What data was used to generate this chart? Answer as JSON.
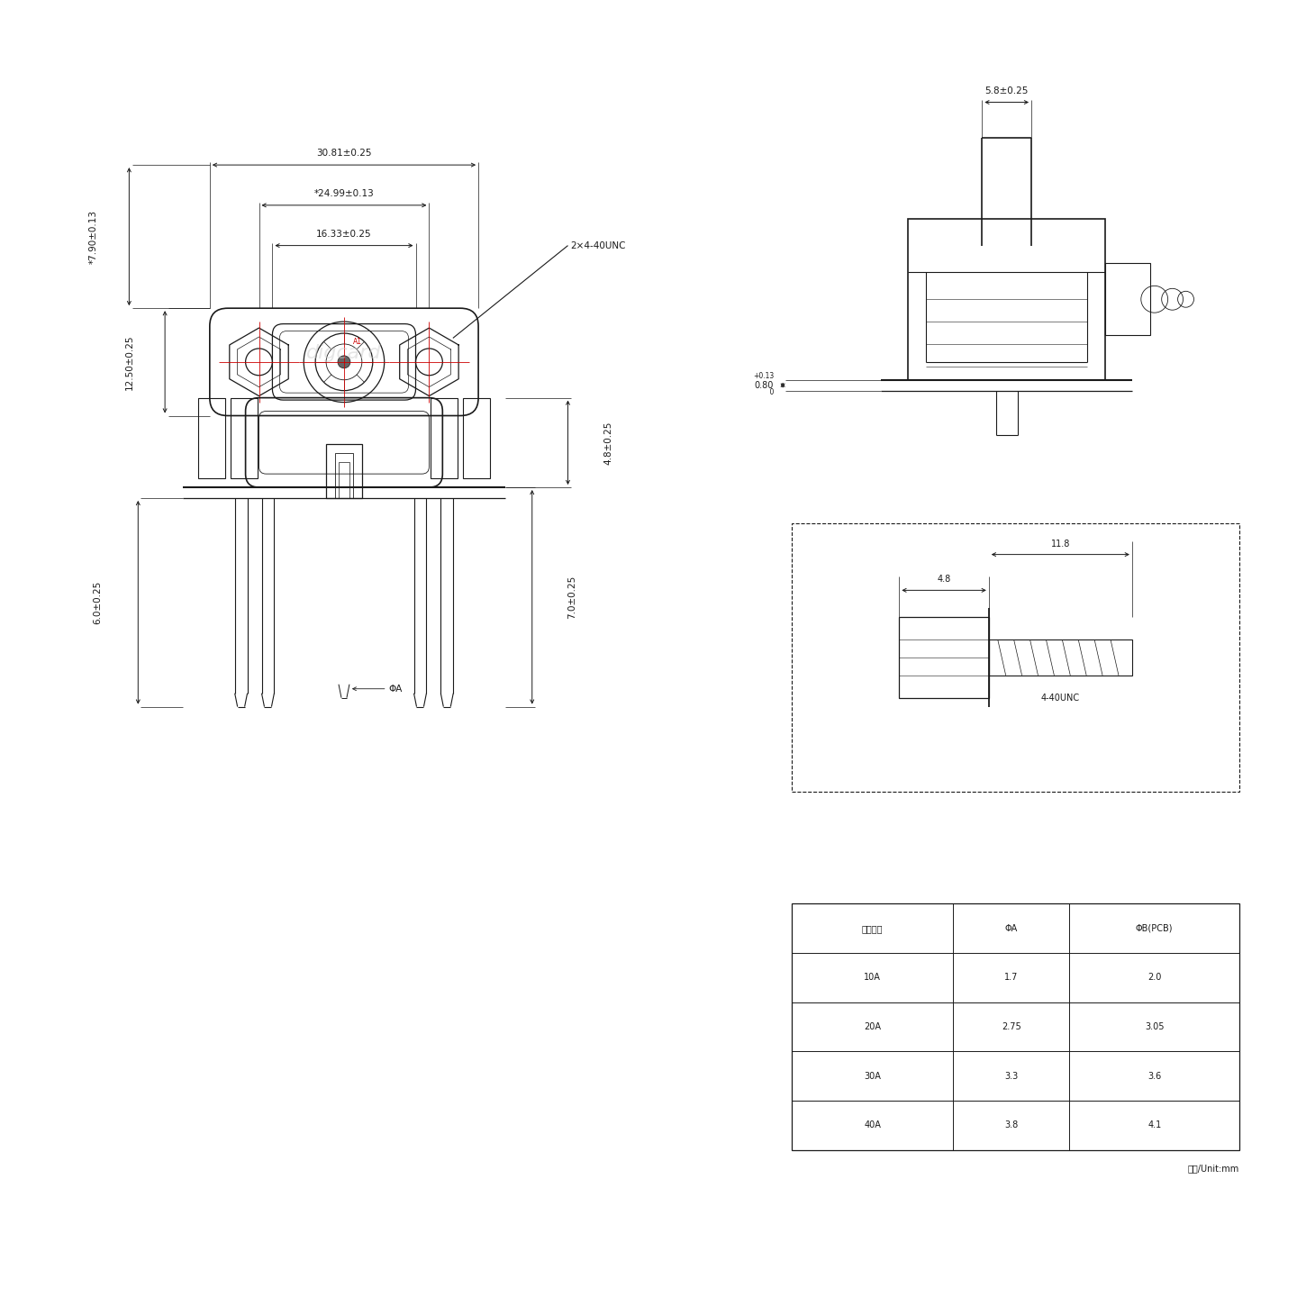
{
  "bg_color": "#ffffff",
  "line_color": "#1a1a1a",
  "red_color": "#cc0000",
  "watermark": "digcard",
  "table_header": [
    "额定电流",
    "ΦA",
    "ΦB(PCB)"
  ],
  "table_rows": [
    [
      "10A",
      "1.7",
      "2.0"
    ],
    [
      "20A",
      "2.75",
      "3.05"
    ],
    [
      "30A",
      "3.3",
      "3.6"
    ],
    [
      "40A",
      "3.8",
      "4.1"
    ]
  ],
  "unit_label": "单位/Unit:mm",
  "dims": {
    "top_width": "30.81±0.25",
    "mid_width": "*24.99±0.13",
    "inner_width": "16.33±0.25",
    "top_height": "*7.90±0.13",
    "body_height": "12.50±0.25",
    "side_width": "5.8±0.25",
    "pcb_thick": "0.80",
    "pcb_thick_tol": "+0.13\n  0",
    "dim_48_right": "4.8±0.25",
    "dim_70_right": "7.0±0.25",
    "dim_60_left": "6.0±0.25",
    "dim_phiA": "ΦA",
    "screw_label": "2×4-40UNC",
    "detail_48": "4.8",
    "detail_118": "11.8",
    "detail_440": "4-40UNC"
  }
}
